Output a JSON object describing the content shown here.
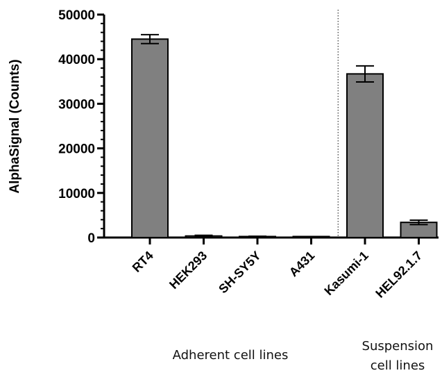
{
  "chart_data": {
    "type": "bar",
    "categories": [
      "RT4",
      "HEK293",
      "SH-SY5Y",
      "A431",
      "Kasumi-1",
      "HEL92.1.7"
    ],
    "values": [
      44500,
      350,
      200,
      50,
      36700,
      3400
    ],
    "errors": [
      1000,
      150,
      100,
      30,
      1800,
      500
    ],
    "xlabel": "",
    "ylabel": "AlphaSignal (Counts)",
    "ylim": [
      0,
      50000
    ],
    "yticks": [
      0,
      10000,
      20000,
      30000,
      40000,
      50000
    ],
    "ytick_labels": [
      "0",
      "10000",
      "20000",
      "30000",
      "40000",
      "50000"
    ],
    "grid": false,
    "bar_color": "#808080",
    "separator_after_index": 3,
    "groups": [
      {
        "lines": [
          "Adherent cell lines"
        ]
      },
      {
        "lines": [
          "Suspension",
          "cell lines"
        ]
      }
    ]
  }
}
